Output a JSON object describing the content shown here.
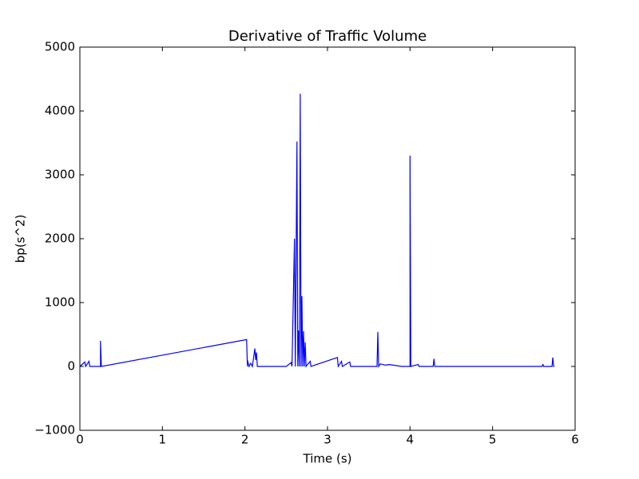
{
  "chart_data": {
    "type": "line",
    "title": "Derivative of Traffic Volume",
    "x_label": "Time (s)",
    "y_label": "bp(s^2)",
    "color": "#0000ff",
    "x": [
      0,
      0.06,
      0.07,
      0.11,
      0.12,
      0.25,
      0.25,
      0.26,
      2.02,
      2.03,
      2.03,
      2.05,
      2.07,
      2.09,
      2.12,
      2.13,
      2.14,
      2.15,
      2.5,
      2.56,
      2.57,
      2.6,
      2.61,
      2.63,
      2.64,
      2.65,
      2.66,
      2.67,
      2.68,
      2.69,
      2.7,
      2.71,
      2.72,
      2.73,
      2.74,
      2.79,
      2.8,
      3.12,
      3.13,
      3.17,
      3.18,
      3.27,
      3.28,
      3.6,
      3.61,
      3.62,
      3.64,
      3.7,
      3.75,
      3.9,
      4.0,
      4.0,
      4.01,
      4.1,
      4.11,
      4.28,
      4.29,
      4.3,
      5.6,
      5.61,
      5.62,
      5.72,
      5.73,
      5.74,
      5.75
    ],
    "values": [
      0,
      70,
      0,
      80,
      0,
      0,
      400,
      0,
      420,
      0,
      100,
      0,
      50,
      0,
      280,
      100,
      220,
      0,
      0,
      60,
      0,
      2000,
      0,
      3520,
      0,
      560,
      0,
      4270,
      0,
      1100,
      0,
      550,
      0,
      380,
      0,
      80,
      0,
      140,
      0,
      80,
      0,
      70,
      0,
      0,
      540,
      0,
      40,
      20,
      30,
      0,
      0,
      3300,
      0,
      30,
      0,
      0,
      120,
      0,
      0,
      30,
      0,
      0,
      140,
      0,
      0
    ],
    "xlim": [
      0,
      6
    ],
    "ylim": [
      -1000,
      5000
    ],
    "xticks": [
      0,
      1,
      2,
      3,
      4,
      5,
      6
    ],
    "yticks": [
      {
        "value": -1000,
        "label": "−1000"
      },
      0,
      1000,
      2000,
      3000,
      4000,
      5000
    ]
  }
}
